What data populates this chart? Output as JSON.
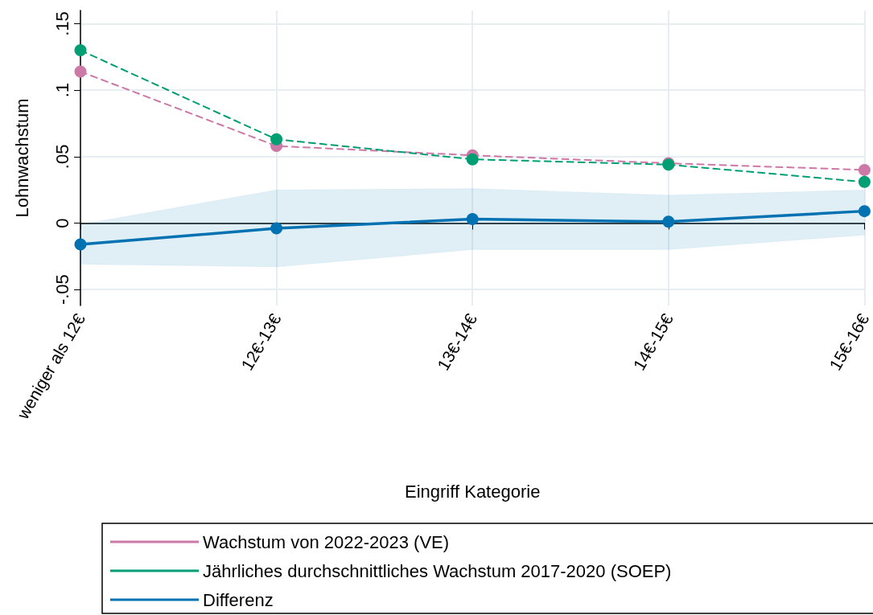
{
  "chart_data": {
    "type": "line",
    "xlabel": "Eingriff Kategorie",
    "ylabel": "Lohnwachstum",
    "categories": [
      "weniger als 12€",
      "12€-13€",
      "13€-14€",
      "14€-15€",
      "15€-16€"
    ],
    "series": [
      {
        "name": "Wachstum von 2022-2023 (VE)",
        "color": "#cc79a7",
        "line_style": "dashed",
        "values": [
          0.114,
          0.058,
          0.051,
          0.045,
          0.04
        ]
      },
      {
        "name": "Jährliches durchschnittliches Wachstum 2017-2020 (SOEP)",
        "color": "#009e73",
        "line_style": "dashed",
        "values": [
          0.13,
          0.063,
          0.048,
          0.044,
          0.031
        ]
      },
      {
        "name": "Differenz",
        "color": "#0072b2",
        "line_style": "solid",
        "values": [
          -0.016,
          -0.004,
          0.003,
          0.001,
          0.009
        ],
        "lower": [
          -0.031,
          -0.033,
          -0.02,
          -0.02,
          -0.009
        ],
        "upper": [
          -0.001,
          0.025,
          0.026,
          0.021,
          0.025
        ]
      }
    ],
    "ylim": [
      -0.062,
      0.16
    ],
    "yticks": [
      {
        "value": -0.05,
        "label": "-.05"
      },
      {
        "value": 0,
        "label": "0"
      },
      {
        "value": 0.05,
        "label": ".05"
      },
      {
        "value": 0.1,
        "label": ".1"
      },
      {
        "value": 0.15,
        "label": ".15"
      }
    ],
    "grid": true,
    "legend": "bottom",
    "marker": "circle"
  }
}
